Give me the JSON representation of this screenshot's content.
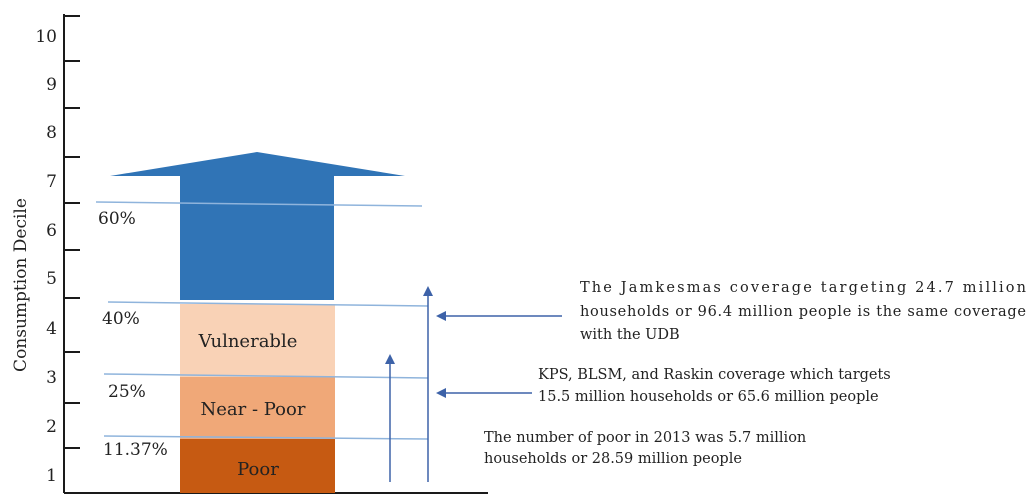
{
  "y_axis": {
    "label": "Consumption Decile",
    "ticks": [
      "1",
      "2",
      "3",
      "4",
      "5",
      "6",
      "7",
      "8",
      "9",
      "10"
    ]
  },
  "thresholds": [
    {
      "id": "poor",
      "label": "11.37%"
    },
    {
      "id": "near-poor",
      "label": "25%"
    },
    {
      "id": "vulnerable",
      "label": "40%"
    },
    {
      "id": "upper",
      "label": "60%"
    }
  ],
  "segments": [
    {
      "id": "poor",
      "label": "Poor",
      "color": "#c65a12"
    },
    {
      "id": "near-poor",
      "label": "Near - Poor",
      "color": "#f0a878"
    },
    {
      "id": "vulnerable",
      "label": "Vulnerable",
      "color": "#f9d2b6"
    },
    {
      "id": "upper",
      "label": "",
      "color": "#3074b6"
    }
  ],
  "annotations": {
    "jamkesmas": {
      "lines": [
        "The Jamkesmas coverage targeting 24.7 million",
        "households or 96.4 million people is the same coverage",
        "with the UDB"
      ]
    },
    "kps": {
      "lines": [
        "KPS, BLSM, and Raskin coverage which targets",
        "15.5 million households or 65.6 million people"
      ]
    },
    "poor": {
      "lines": [
        "The number of poor in 2013 was 5.7 million",
        "households or 28.59 million people"
      ]
    }
  },
  "colors": {
    "axis": "#1a1a1a",
    "guide_line": "#8fb4dc",
    "arrow": "#3d62a8",
    "text": "#222222"
  }
}
